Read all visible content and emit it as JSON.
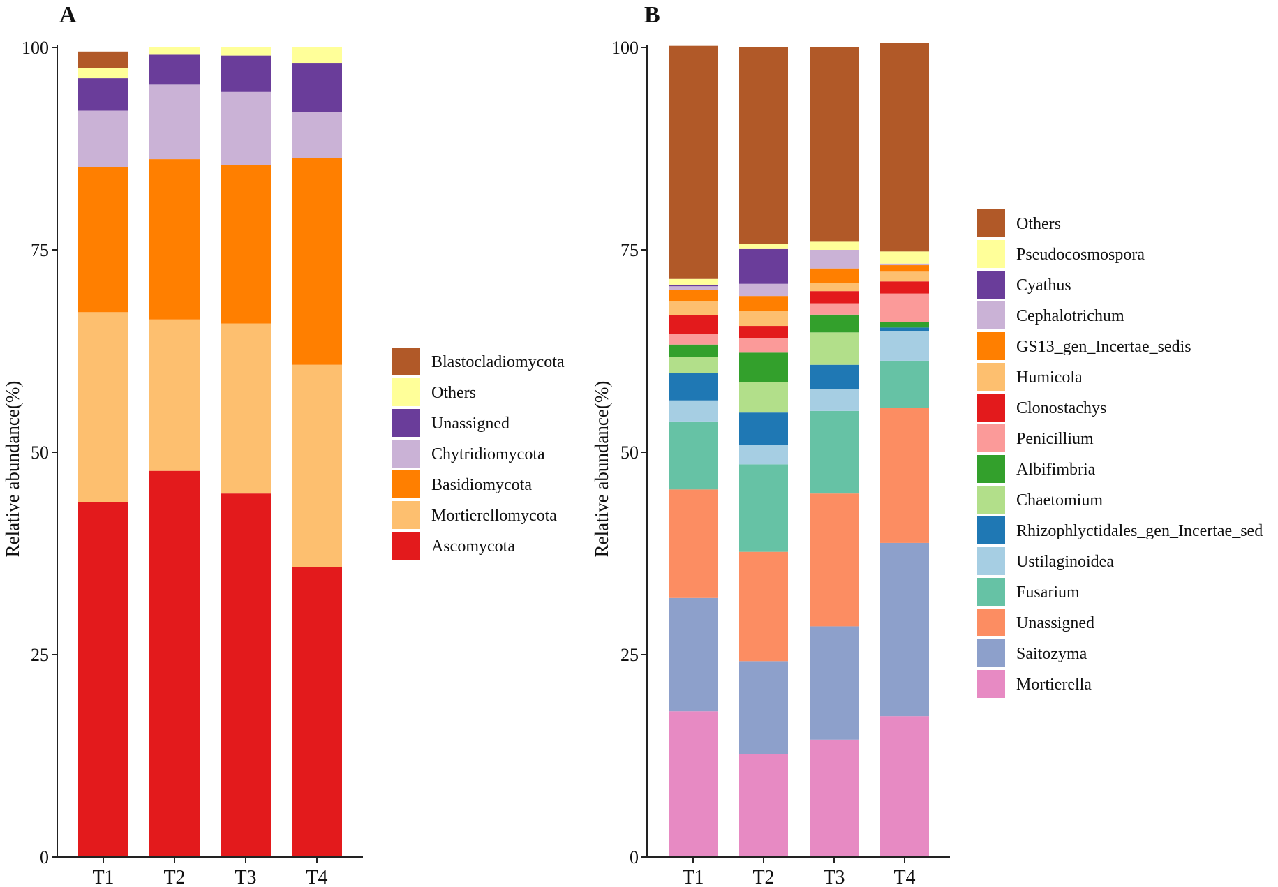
{
  "chart_data": [
    {
      "type": "bar",
      "stacked": true,
      "panel_label": "A",
      "ylabel": "Relative abundance(%)",
      "xlabel": "",
      "ylim": [
        0,
        100
      ],
      "yticks": [
        0,
        25,
        50,
        75,
        100
      ],
      "categories": [
        "T1",
        "T2",
        "T3",
        "T4"
      ],
      "series": [
        {
          "name": "Ascomycota",
          "color": "#E31A1C",
          "values": [
            43.8,
            47.7,
            44.9,
            35.8
          ]
        },
        {
          "name": "Mortierellomycota",
          "color": "#FDBF6F",
          "values": [
            23.5,
            18.7,
            21.0,
            25.0
          ]
        },
        {
          "name": "Basidiomycota",
          "color": "#FF7F00",
          "values": [
            17.9,
            19.8,
            19.6,
            25.5
          ]
        },
        {
          "name": "Chytridiomycota",
          "color": "#CAB2D6",
          "values": [
            7.0,
            9.2,
            9.0,
            5.7
          ]
        },
        {
          "name": "Unassigned",
          "color": "#6A3D9A",
          "values": [
            4.0,
            3.7,
            4.5,
            6.1
          ]
        },
        {
          "name": "Others",
          "color": "#FFFF99",
          "values": [
            1.3,
            0.9,
            1.0,
            1.9
          ]
        },
        {
          "name": "Blastocladiomycota",
          "color": "#B15928",
          "values": [
            2.0,
            0.0,
            0.0,
            0.0
          ]
        }
      ],
      "legend": [
        "Blastocladiomycota",
        "Others",
        "Unassigned",
        "Chytridiomycota",
        "Basidiomycota",
        "Mortierellomycota",
        "Ascomycota"
      ],
      "legend_position": "right"
    },
    {
      "type": "bar",
      "stacked": true,
      "panel_label": "B",
      "ylabel": "Relative abundance(%)",
      "xlabel": "",
      "ylim": [
        0,
        100
      ],
      "yticks": [
        0,
        25,
        50,
        75,
        100
      ],
      "categories": [
        "T1",
        "T2",
        "T3",
        "T4"
      ],
      "series": [
        {
          "name": "Mortierella",
          "color": "#E78AC3",
          "values": [
            18.0,
            12.7,
            14.5,
            17.4
          ]
        },
        {
          "name": "Saitozyma",
          "color": "#8DA0CB",
          "values": [
            14.0,
            11.5,
            14.0,
            21.4
          ]
        },
        {
          "name": "Unassigned",
          "color": "#FC8D62",
          "values": [
            13.4,
            13.5,
            16.4,
            16.7
          ]
        },
        {
          "name": "Fusarium",
          "color": "#66C2A5",
          "values": [
            8.4,
            10.8,
            10.2,
            5.8
          ]
        },
        {
          "name": "Ustilaginoidea",
          "color": "#A6CEE3",
          "values": [
            2.6,
            2.4,
            2.7,
            3.7
          ]
        },
        {
          "name": "Rhizophlyctidales_gen_Incertae_sed",
          "color": "#1F78B4",
          "values": [
            3.4,
            4.0,
            3.0,
            0.4
          ]
        },
        {
          "name": "Chaetomium",
          "color": "#B2DF8A",
          "values": [
            2.0,
            3.8,
            4.0,
            0.0
          ]
        },
        {
          "name": "Albifimbria",
          "color": "#33A02C",
          "values": [
            1.5,
            3.6,
            2.2,
            0.7
          ]
        },
        {
          "name": "Penicillium",
          "color": "#FB9A99",
          "values": [
            1.3,
            1.8,
            1.4,
            3.5
          ]
        },
        {
          "name": "Clonostachys",
          "color": "#E31A1C",
          "values": [
            2.3,
            1.5,
            1.5,
            1.5
          ]
        },
        {
          "name": "Humicola",
          "color": "#FDBF6F",
          "values": [
            1.8,
            1.9,
            1.0,
            1.2
          ]
        },
        {
          "name": "GS13_gen_Incertae_sedis",
          "color": "#FF7F00",
          "values": [
            1.3,
            1.8,
            1.8,
            0.8
          ]
        },
        {
          "name": "Cephalotrichum",
          "color": "#CAB2D6",
          "values": [
            0.5,
            1.5,
            2.3,
            0.2
          ]
        },
        {
          "name": "Cyathus",
          "color": "#6A3D9A",
          "values": [
            0.2,
            4.3,
            0.0,
            0.0
          ]
        },
        {
          "name": "Pseudocosmospora",
          "color": "#FFFF99",
          "values": [
            0.7,
            0.6,
            1.0,
            1.5
          ]
        },
        {
          "name": "Others",
          "color": "#B15928",
          "values": [
            28.8,
            24.3,
            24.0,
            25.8
          ]
        }
      ],
      "legend": [
        "Others",
        "Pseudocosmospora",
        "Cyathus",
        "Cephalotrichum",
        "GS13_gen_Incertae_sedis",
        "Humicola",
        "Clonostachys",
        "Penicillium",
        "Albifimbria",
        "Chaetomium",
        "Rhizophlyctidales_gen_Incertae_sed",
        "Ustilaginoidea",
        "Fusarium",
        "Unassigned",
        "Saitozyma",
        "Mortierella"
      ],
      "legend_position": "right"
    }
  ]
}
